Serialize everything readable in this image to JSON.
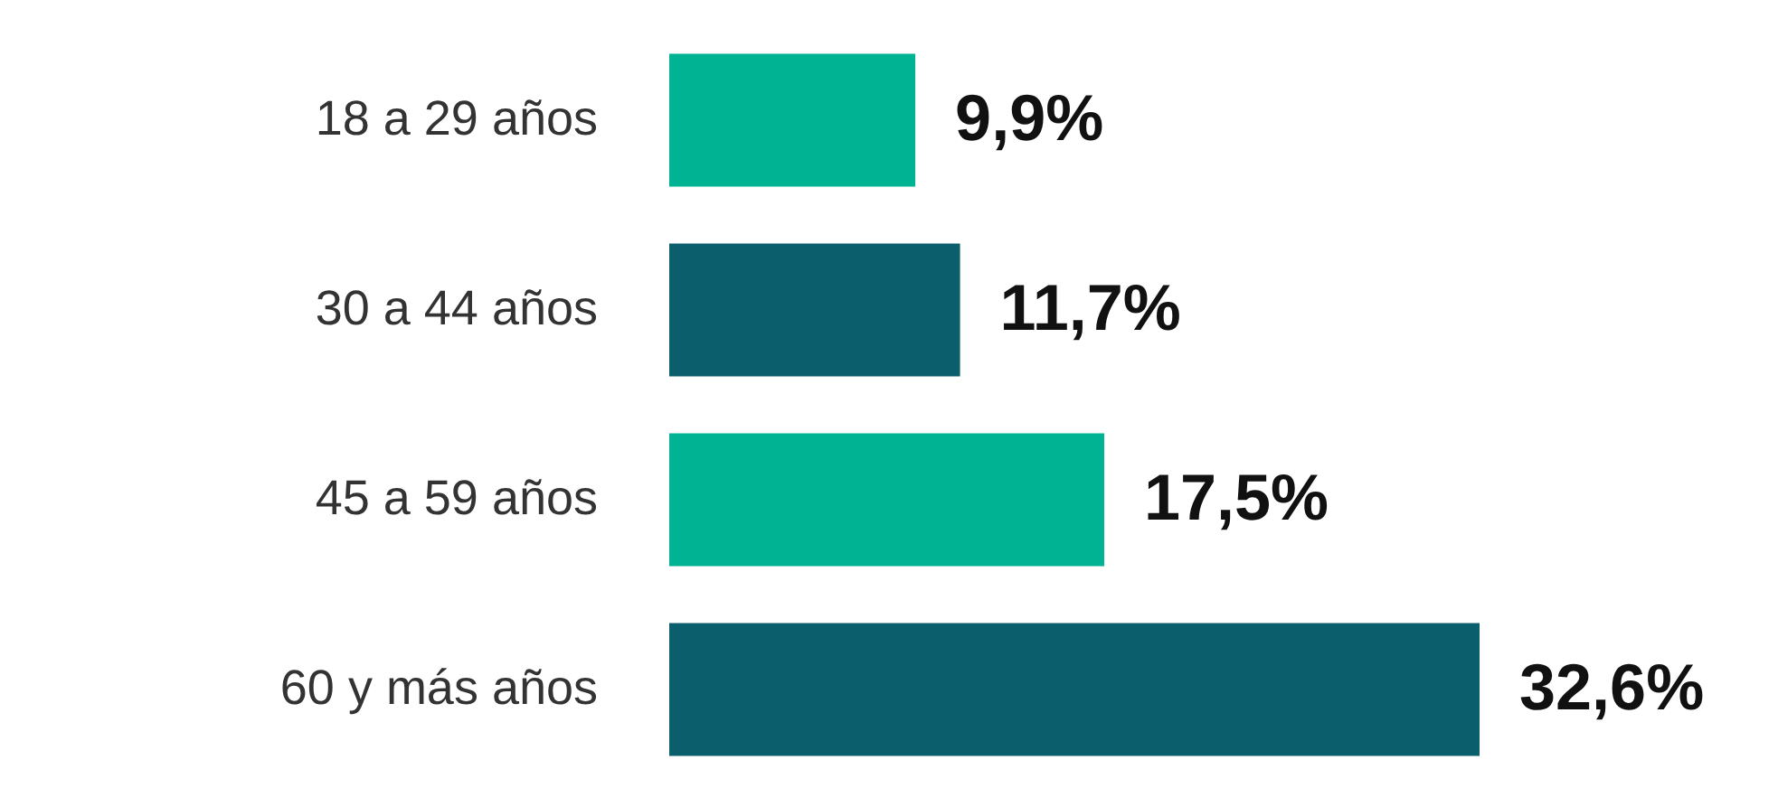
{
  "chart_data": {
    "type": "bar",
    "orientation": "horizontal",
    "categories": [
      "18 a 29 años",
      "30 a 44 años",
      "45 a 59 años",
      "60 y más años"
    ],
    "values": [
      9.9,
      11.7,
      17.5,
      32.6
    ],
    "value_labels": [
      "9,9%",
      "11,7%",
      "17,5%",
      "32,6%"
    ],
    "colors": [
      "#00b393",
      "#0b5e6b",
      "#00b393",
      "#0b5e6b"
    ]
  }
}
